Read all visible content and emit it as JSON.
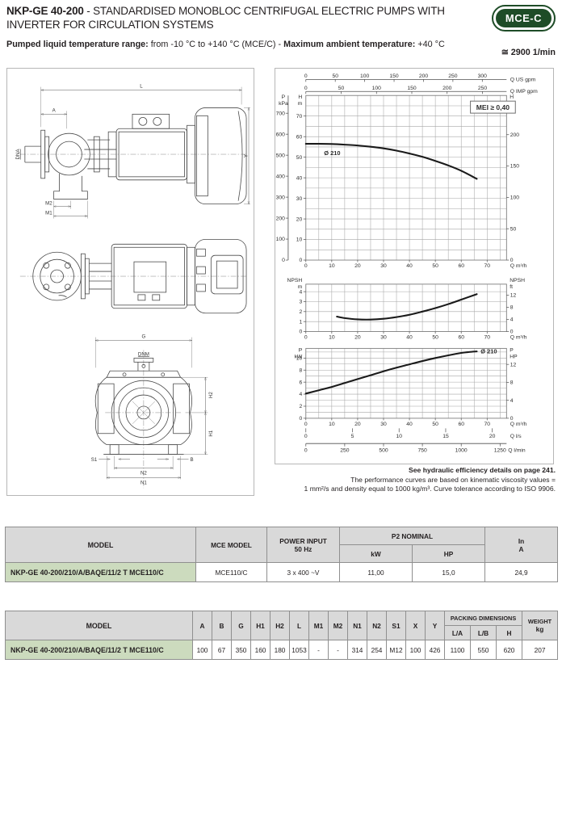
{
  "header": {
    "model": "NKP-GE 40-200",
    "title_rest": " - STANDARDISED MONOBLOC CENTRIFUGAL ELECTRIC PUMPS WITH INVERTER FOR CIRCULATION SYSTEMS",
    "badge": "MCE-C",
    "temp_label1": "Pumped liquid temperature range:",
    "temp_value1": " from -10 °C to +140 °C (MCE/C) - ",
    "temp_label2": "Maximum ambient temperature:",
    "temp_value2": " +40 °C",
    "speed": "≅ 2900 1/min"
  },
  "drawing": {
    "side": {
      "L": "L",
      "A": "A",
      "DNA": "DNA",
      "Y": "Y",
      "M2": "M2",
      "M1": "M1"
    },
    "front": {
      "G": "G",
      "DNM": "DNM",
      "H2": "H2",
      "H1": "H1",
      "S1": "S1",
      "B": "B",
      "N2": "N2",
      "N1": "N1"
    }
  },
  "chart_data": [
    {
      "type": "line",
      "name": "head",
      "title": "MEI ≥ 0,40",
      "curve_label": "Ø 210",
      "label_pos": [
        7,
        51
      ],
      "x": [
        0,
        5,
        10,
        15,
        20,
        25,
        30,
        35,
        40,
        45,
        50,
        55,
        60,
        66
      ],
      "y": [
        56.5,
        56.5,
        56.4,
        56.1,
        55.7,
        55.1,
        54.3,
        53.2,
        51.8,
        50.2,
        48.2,
        46.0,
        43.4,
        39.5
      ],
      "xlim": [
        0,
        77.5
      ],
      "ylim": [
        0,
        80
      ],
      "xlabel": "Q m³/h",
      "x_ticks": [
        0,
        10,
        20,
        30,
        40,
        50,
        60,
        70
      ],
      "grid_step_x": 5,
      "grid_step_y": 5,
      "left_axis": {
        "label": [
          "H",
          "m"
        ],
        "ticks": [
          0,
          10,
          20,
          30,
          40,
          50,
          60,
          70
        ]
      },
      "left_axis2": {
        "label": [
          "P",
          "kPa"
        ],
        "ticks": [
          0,
          100,
          200,
          300,
          400,
          500,
          600,
          700
        ],
        "to_m": 0.10197
      },
      "right_axis": {
        "label": [
          "H",
          "ft"
        ],
        "ticks": [
          0,
          50,
          100,
          150,
          200
        ],
        "to_m": 0.3048
      },
      "top_axes": [
        {
          "label": "Q US gpm",
          "ticks": [
            0,
            50,
            100,
            150,
            200,
            250,
            300
          ],
          "to_m3h": 0.22712
        },
        {
          "label": "Q IMP gpm",
          "ticks": [
            0,
            50,
            100,
            150,
            200,
            250
          ],
          "to_m3h": 0.27277
        }
      ]
    },
    {
      "type": "line",
      "name": "npsh",
      "x": [
        12,
        15,
        20,
        25,
        30,
        35,
        40,
        45,
        50,
        55,
        60,
        66
      ],
      "y": [
        1.5,
        1.35,
        1.22,
        1.2,
        1.28,
        1.45,
        1.68,
        2.0,
        2.35,
        2.75,
        3.2,
        3.75
      ],
      "xlim": [
        0,
        77.5
      ],
      "ylim": [
        0,
        4.75
      ],
      "xlabel": "Q m³/h",
      "x_ticks": [
        0,
        10,
        20,
        30,
        40,
        50,
        60,
        70
      ],
      "grid_step_x": 5,
      "grid_step_y": 1,
      "left_axis": {
        "label": [
          "NPSH",
          "m"
        ],
        "ticks": [
          0,
          1,
          2,
          3,
          4
        ]
      },
      "right_axis": {
        "label": [
          "NPSH",
          "ft"
        ],
        "ticks": [
          0,
          4,
          8,
          12
        ],
        "to_m": 0.3048
      }
    },
    {
      "type": "line",
      "name": "power",
      "curve_label": "Ø 210",
      "label_pos": [
        67.5,
        10.75
      ],
      "x": [
        0,
        5,
        10,
        15,
        20,
        25,
        30,
        35,
        40,
        45,
        50,
        55,
        60,
        63,
        66
      ],
      "y": [
        4.1,
        4.65,
        5.2,
        5.85,
        6.5,
        7.15,
        7.8,
        8.4,
        8.95,
        9.5,
        10.0,
        10.45,
        10.85,
        11.0,
        11.1
      ],
      "xlim": [
        0,
        77.5
      ],
      "ylim": [
        0,
        11.6
      ],
      "xlabel": "Q m³/h",
      "x_ticks": [
        0,
        10,
        20,
        30,
        40,
        50,
        60,
        70
      ],
      "grid_step_x": 5,
      "grid_step_y": 1,
      "left_axis": {
        "label": [
          "P",
          "kW"
        ],
        "ticks": [
          0,
          2,
          4,
          6,
          8,
          10
        ]
      },
      "right_axis": {
        "label": [
          "P",
          "HP"
        ],
        "ticks": [
          0,
          4,
          8,
          12
        ],
        "to_m": 0.7457
      },
      "bottom_axes": [
        {
          "label": "Q l/s",
          "ticks": [
            0,
            5,
            10,
            15,
            20
          ],
          "to_m3h": 3.6,
          "line": false
        },
        {
          "label": "Q l/min",
          "ticks": [
            0,
            250,
            500,
            750,
            1000,
            1250
          ],
          "to_m3h": 0.06,
          "line": true
        }
      ]
    }
  ],
  "notes": {
    "line1": "See hydraulic efficiency details on page 241.",
    "line2": "The performance curves are based on kinematic viscosity values =",
    "line3": "1 mm²/s and density equal to 1000 kg/m³. Curve tolerance according to ISO 9906."
  },
  "table1": {
    "headers": {
      "model": "MODEL",
      "mce": "MCE MODEL",
      "power1": "POWER INPUT",
      "power2": "50 Hz",
      "p2": "P2 NOMINAL",
      "kw": "kW",
      "hp": "HP",
      "in": "In",
      "a": "A"
    },
    "row": {
      "model": "NKP-GE 40-200/210/A/BAQE/11/2 T MCE110/C",
      "mce": "MCE110/C",
      "power": "3 x 400 ~V",
      "kw": "11,00",
      "hp": "15,0",
      "in": "24,9"
    }
  },
  "table2": {
    "model_header": "MODEL",
    "dim_headers": [
      "A",
      "B",
      "G",
      "H1",
      "H2",
      "L",
      "M1",
      "M2",
      "N1",
      "N2",
      "S1",
      "X",
      "Y"
    ],
    "packing_header": "PACKING DIMENSIONS",
    "packing_sub": [
      "L/A",
      "L/B",
      "H"
    ],
    "weight_header": "WEIGHT",
    "weight_unit": "kg",
    "row": {
      "model": "NKP-GE 40-200/210/A/BAQE/11/2 T MCE110/C",
      "values": [
        "100",
        "67",
        "350",
        "160",
        "180",
        "1053",
        "-",
        "-",
        "314",
        "254",
        "M12",
        "100",
        "426",
        "1100",
        "550",
        "620",
        "207"
      ]
    }
  }
}
